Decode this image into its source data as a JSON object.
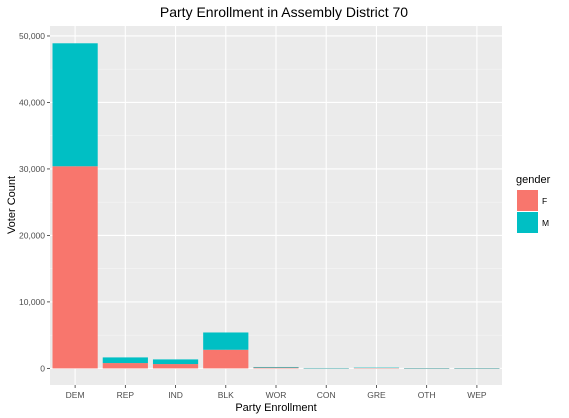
{
  "chart_data": {
    "type": "bar",
    "stacked": true,
    "title": "Party Enrollment in Assembly District 70",
    "xlabel": "Party Enrollment",
    "ylabel": "Voter Count",
    "categories": [
      "DEM",
      "REP",
      "IND",
      "BLK",
      "WOR",
      "CON",
      "GRE",
      "OTH",
      "WEP"
    ],
    "series": [
      {
        "name": "F",
        "color": "#F8766D",
        "values": [
          30400,
          800,
          650,
          2800,
          120,
          30,
          60,
          5,
          5
        ]
      },
      {
        "name": "M",
        "color": "#00BFC4",
        "values": [
          18500,
          850,
          700,
          2600,
          90,
          30,
          50,
          5,
          5
        ]
      }
    ],
    "ylim": [
      0,
      50000
    ],
    "y_ticks": [
      0,
      10000,
      20000,
      30000,
      40000,
      50000
    ],
    "y_tick_labels": [
      "0",
      "10,000",
      "20,000",
      "30,000",
      "40,000",
      "50,000"
    ],
    "grid": true,
    "panel_background": "#EBEBEB",
    "legend": {
      "title": "gender",
      "placement": "right"
    }
  }
}
